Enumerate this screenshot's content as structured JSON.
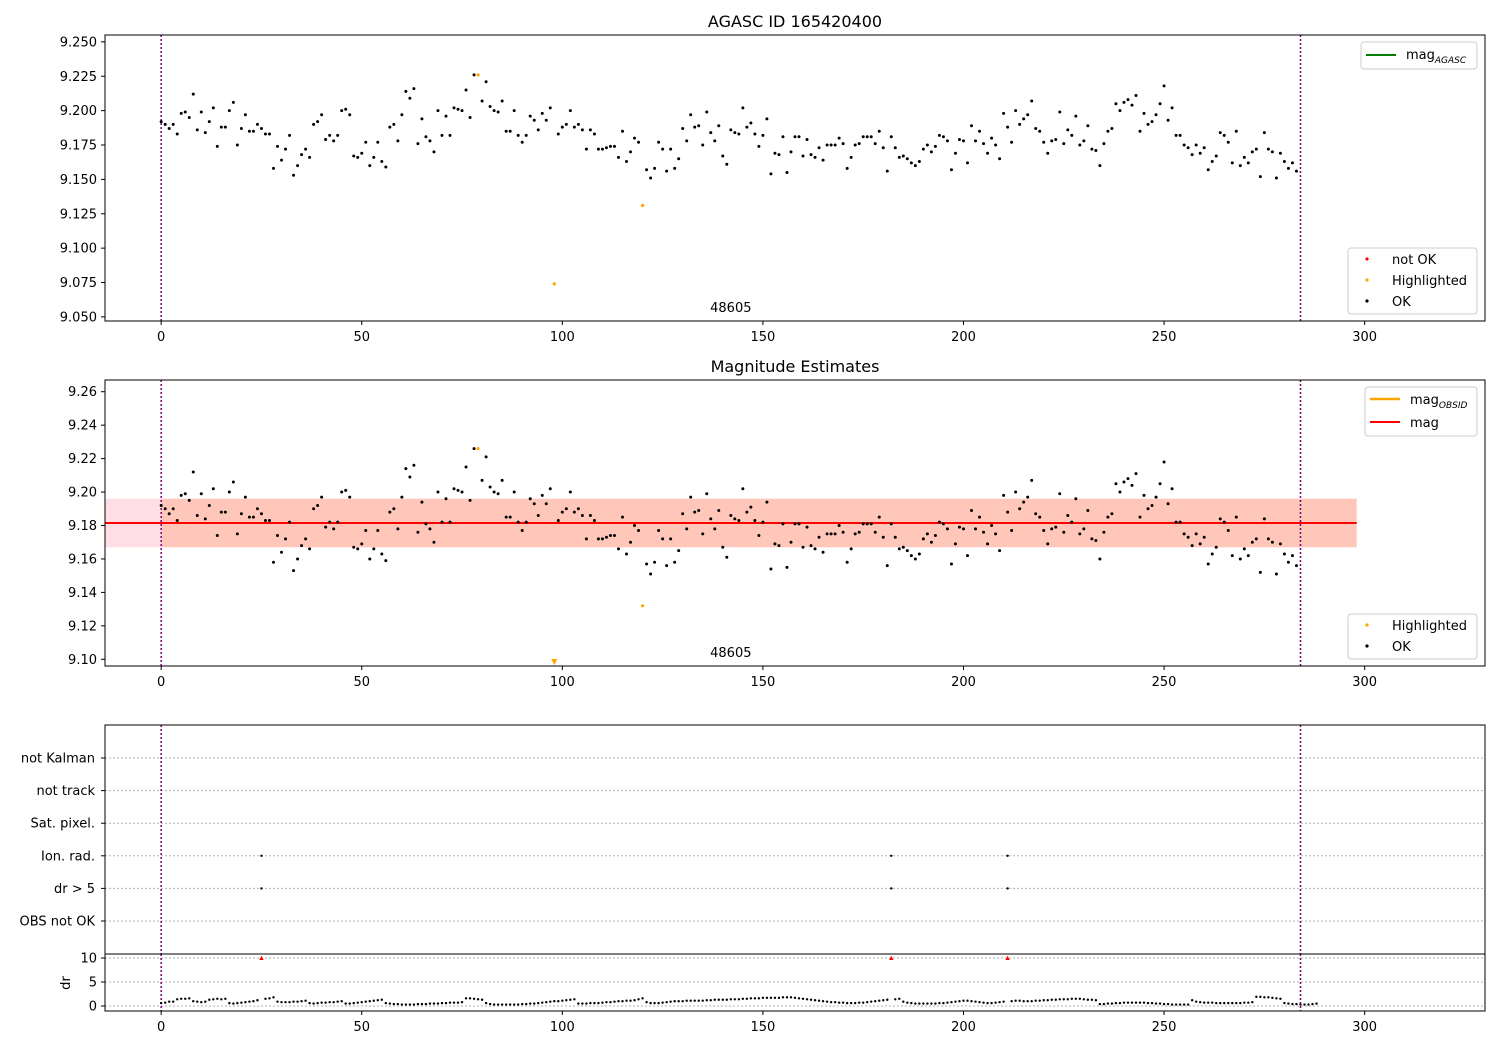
{
  "chart_data": [
    {
      "type": "scatter",
      "title": "AGASC ID 165420400",
      "xlim": [
        -14,
        330
      ],
      "ylim": [
        9.047,
        9.255
      ],
      "x_ticks": [
        0,
        50,
        100,
        150,
        200,
        250,
        300
      ],
      "y_ticks": [
        9.05,
        9.075,
        9.1,
        9.125,
        9.15,
        9.175,
        9.2,
        9.225,
        9.25
      ],
      "y_tick_format": 3,
      "vlines": [
        0,
        284
      ],
      "annotation": "48605",
      "annotation_x": 142,
      "grid": false,
      "legends": [
        {
          "position": "top-right",
          "items": [
            {
              "label": "mag",
              "subscript": "AGASC",
              "color": "#008000",
              "marker": "line"
            }
          ]
        },
        {
          "position": "bottom-right",
          "items": [
            {
              "label": "not OK",
              "color": "#ff0000",
              "marker": "dot"
            },
            {
              "label": "Highlighted",
              "color": "#ffa500",
              "marker": "dot"
            },
            {
              "label": "OK",
              "color": "#000000",
              "marker": "dot"
            }
          ]
        }
      ],
      "highlighted_points": [
        [
          79,
          9.226
        ],
        [
          98,
          9.074
        ],
        [
          120,
          9.131
        ]
      ],
      "series_ok_color": "#000000",
      "series_highlighted_color": "#ffa500"
    },
    {
      "type": "scatter",
      "title": "Magnitude Estimates",
      "xlim": [
        -14,
        330
      ],
      "ylim": [
        9.096,
        9.267
      ],
      "x_ticks": [
        0,
        50,
        100,
        150,
        200,
        250,
        300
      ],
      "y_ticks": [
        9.1,
        9.12,
        9.14,
        9.16,
        9.18,
        9.2,
        9.22,
        9.24,
        9.26
      ],
      "y_tick_format": 2,
      "vlines": [
        0,
        284
      ],
      "annotation": "48605",
      "annotation_x": 142,
      "grid": false,
      "band_outer": {
        "x": [
          -14,
          298
        ],
        "y": [
          9.167,
          9.196
        ],
        "color": "#ffc0cb"
      },
      "band_inner": {
        "x": [
          0,
          298
        ],
        "y": [
          9.167,
          9.196
        ],
        "color": "#ffa07a"
      },
      "hlines": [
        {
          "label": "mag",
          "subscript": "OBSID",
          "y": 9.1815,
          "x": [
            0,
            298
          ],
          "color": "#ffa500"
        },
        {
          "label": "mag",
          "y": 9.1815,
          "x": [
            -14,
            298
          ],
          "color": "#ff0000"
        }
      ],
      "legends": [
        {
          "position": "top-right",
          "items": [
            {
              "label": "mag",
              "subscript": "OBSID",
              "color": "#ffa500",
              "marker": "line"
            },
            {
              "label": "mag",
              "color": "#ff0000",
              "marker": "line"
            }
          ]
        },
        {
          "position": "bottom-right",
          "items": [
            {
              "label": "Highlighted",
              "color": "#ffa500",
              "marker": "dot"
            },
            {
              "label": "OK",
              "color": "#000000",
              "marker": "dot"
            }
          ]
        }
      ],
      "highlighted_points": [
        [
          79,
          9.226
        ],
        [
          120,
          9.132
        ]
      ],
      "out_of_range_marker": {
        "x": 98,
        "direction": "down",
        "color": "#ffa500"
      }
    },
    {
      "type": "scatter",
      "title": "",
      "xlim": [
        -14,
        330
      ],
      "categories": [
        "not Kalman",
        "not track",
        "Sat. pixel.",
        "Ion. rad.",
        "dr > 5",
        "OBS not OK"
      ],
      "flag_points": {
        "Ion. rad.": [
          25,
          182,
          211
        ],
        "dr > 5": [
          25,
          182,
          211
        ]
      },
      "vlines": [
        0,
        284
      ],
      "grid": true
    },
    {
      "type": "scatter",
      "title": "",
      "ylabel": "dr",
      "xlim": [
        -14,
        330
      ],
      "ylim": [
        0,
        10.5
      ],
      "x_ticks": [
        0,
        50,
        100,
        150,
        200,
        250,
        300
      ],
      "y_ticks": [
        0,
        5,
        10
      ],
      "vlines": [
        0,
        284
      ],
      "grid": true,
      "dr_flagged": [
        25,
        182,
        211
      ],
      "dr_flagged_value": 10,
      "dr_flagged_color": "#ff0000"
    }
  ],
  "ok_series_mag": [
    9.192,
    9.19,
    9.187,
    9.19,
    9.183,
    9.198,
    9.199,
    9.195,
    9.212,
    9.186,
    9.199,
    9.184,
    9.192,
    9.202,
    9.174,
    9.188,
    9.188,
    9.2,
    9.206,
    9.175,
    9.187,
    9.197,
    9.185,
    9.185,
    9.19,
    9.187,
    9.183,
    9.183,
    9.158,
    9.174,
    9.164,
    9.172,
    9.182,
    9.153,
    9.16,
    9.168,
    9.172,
    9.166,
    9.19,
    9.192,
    9.197,
    9.179,
    9.182,
    9.178,
    9.182,
    9.2,
    9.201,
    9.197,
    9.167,
    9.166,
    9.169,
    9.177,
    9.16,
    9.166,
    9.177,
    9.163,
    9.159,
    9.188,
    9.19,
    9.178,
    9.197,
    9.214,
    9.209,
    9.216,
    9.176,
    9.194,
    9.181,
    9.178,
    9.17,
    9.2,
    9.182,
    9.196,
    9.182,
    9.202,
    9.201,
    9.2,
    9.215,
    9.195,
    9.226,
    9.204,
    9.207,
    9.221,
    9.203,
    9.2,
    9.199,
    9.207,
    9.185,
    9.185,
    9.2,
    9.182,
    9.177,
    9.182,
    9.196,
    9.193,
    9.186,
    9.198,
    9.193,
    9.202,
    9.074,
    9.183,
    9.188,
    9.19,
    9.2,
    9.188,
    9.19,
    9.186,
    9.172,
    9.186,
    9.183,
    9.172,
    9.172,
    9.173,
    9.174,
    9.174,
    9.166,
    9.185,
    9.163,
    9.17,
    9.18,
    9.177,
    9.131,
    9.157,
    9.151,
    9.158,
    9.177,
    9.172,
    9.156,
    9.172,
    9.158,
    9.165,
    9.187,
    9.178,
    9.197,
    9.188,
    9.189,
    9.175,
    9.199,
    9.184,
    9.178,
    9.189,
    9.167,
    9.161,
    9.186,
    9.184,
    9.183,
    9.202,
    9.188,
    9.191,
    9.183,
    9.174,
    9.182,
    9.194,
    9.154,
    9.169,
    9.168,
    9.181,
    9.155,
    9.17,
    9.181,
    9.181,
    9.167,
    9.179,
    9.168,
    9.166,
    9.173,
    9.164,
    9.175,
    9.175,
    9.175,
    9.18,
    9.176,
    9.158,
    9.166,
    9.175,
    9.176,
    9.181,
    9.181,
    9.181,
    9.176,
    9.185,
    9.173,
    9.156,
    9.181,
    9.173,
    9.166,
    9.167,
    9.165,
    9.162,
    9.16,
    9.163,
    9.172,
    9.175,
    9.17,
    9.174,
    9.182,
    9.181,
    9.178,
    9.157,
    9.169,
    9.179,
    9.178,
    9.162,
    9.189,
    9.178,
    9.185,
    9.176,
    9.169,
    9.18,
    9.175,
    9.165,
    9.198,
    9.188,
    9.177,
    9.2,
    9.19,
    9.194,
    9.197,
    9.207,
    9.187,
    9.185,
    9.177,
    9.169,
    9.178,
    9.179,
    9.199,
    9.176,
    9.186,
    9.182,
    9.196,
    9.175,
    9.178,
    9.189,
    9.172,
    9.171,
    9.16,
    9.176,
    9.185,
    9.187,
    9.205,
    9.2,
    9.206,
    9.208,
    9.204,
    9.211,
    9.185,
    9.198,
    9.19,
    9.192,
    9.197,
    9.205,
    9.218,
    9.193,
    9.202,
    9.182,
    9.182,
    9.175,
    9.173,
    9.168,
    9.175,
    9.169,
    9.173,
    9.157,
    9.163,
    9.167,
    9.184,
    9.182,
    9.177,
    9.162,
    9.185,
    9.16,
    9.166,
    9.162,
    9.17,
    9.172,
    9.152,
    9.184,
    9.172,
    9.17,
    9.151,
    9.169,
    9.163,
    9.158,
    9.162,
    9.156
  ],
  "ok_series_dr": [
    0.6,
    0.7,
    0.9,
    0.9,
    1.4,
    1.5,
    1.5,
    1.6,
    1.0,
    0.9,
    0.8,
    0.9,
    1.3,
    1.4,
    1.5,
    1.4,
    1.5,
    0.6,
    0.5,
    0.6,
    0.7,
    0.8,
    0.9,
    1.0,
    1.2,
    1.3,
    1.5,
    1.6,
    1.8,
    0.9,
    0.8,
    0.8,
    0.8,
    0.9,
    0.9,
    1.0,
    1.1,
    0.6,
    0.5,
    0.6,
    0.7,
    0.7,
    0.8,
    0.8,
    0.9,
    1.0,
    0.5,
    0.5,
    0.6,
    0.7,
    0.8,
    0.9,
    1.0,
    1.1,
    1.2,
    1.3,
    0.6,
    0.5,
    0.4,
    0.4,
    0.3,
    0.3,
    0.3,
    0.3,
    0.4,
    0.4,
    0.4,
    0.5,
    0.5,
    0.5,
    0.6,
    0.6,
    0.7,
    0.7,
    0.7,
    0.8,
    1.6,
    1.6,
    1.5,
    1.4,
    1.3,
    0.6,
    0.4,
    0.3,
    0.3,
    0.3,
    0.3,
    0.3,
    0.3,
    0.3,
    0.4,
    0.4,
    0.5,
    0.5,
    0.6,
    0.7,
    0.8,
    0.9,
    1.0,
    1.0,
    1.1,
    1.2,
    1.3,
    1.4,
    0.5,
    0.5,
    0.5,
    0.6,
    0.6,
    0.6,
    0.7,
    0.8,
    0.8,
    0.9,
    1.0,
    1.0,
    1.1,
    1.1,
    1.2,
    1.4,
    1.6,
    0.8,
    0.6,
    0.6,
    0.6,
    0.7,
    0.8,
    0.9,
    1.0,
    1.0,
    1.0,
    1.1,
    1.1,
    1.1,
    1.1,
    1.1,
    1.2,
    1.2,
    1.3,
    1.3,
    1.3,
    1.3,
    1.4,
    1.4,
    1.4,
    1.5,
    1.5,
    1.6,
    1.6,
    1.6,
    1.7,
    1.7,
    1.7,
    1.7,
    1.7,
    1.8,
    1.8,
    1.8,
    1.7,
    1.6,
    1.5,
    1.4,
    1.3,
    1.2,
    1.1,
    1.0,
    0.9,
    0.8,
    0.8,
    0.7,
    0.7,
    0.6,
    0.6,
    0.6,
    0.7,
    0.7,
    0.8,
    0.9,
    1.0,
    1.1,
    1.2,
    1.3,
    1.4,
    1.4,
    1.5,
    0.9,
    0.7,
    0.6,
    0.5,
    0.5,
    0.5,
    0.5,
    0.5,
    0.5,
    0.6,
    0.6,
    0.7,
    0.8,
    0.9,
    1.0,
    1.1,
    1.1,
    1.0,
    0.9,
    0.8,
    0.7,
    0.6,
    0.6,
    0.7,
    0.8,
    0.9,
    1.0,
    1.0,
    1.1,
    1.1,
    1.0,
    1.0,
    1.0,
    1.1,
    1.1,
    1.2,
    1.2,
    1.3,
    1.3,
    1.4,
    1.4,
    1.4,
    1.5,
    1.5,
    1.5,
    1.4,
    1.3,
    1.3,
    1.2,
    0.4,
    0.4,
    0.5,
    0.5,
    0.6,
    0.6,
    0.7,
    0.7,
    0.7,
    0.7,
    0.7,
    0.7,
    0.6,
    0.6,
    0.5,
    0.5,
    0.4,
    0.4,
    0.3,
    0.3,
    0.3,
    0.3,
    0.3,
    1.2,
    0.9,
    0.8,
    0.7,
    0.7,
    0.7,
    0.6,
    0.6,
    0.6,
    0.6,
    0.6,
    0.6,
    0.6,
    0.7,
    0.7,
    0.8,
    1.9,
    1.9,
    1.8,
    1.8,
    1.7,
    1.6,
    1.5,
    0.6,
    0.5,
    0.4,
    0.4,
    0.3,
    0.3,
    0.3,
    0.4,
    0.5
  ]
}
